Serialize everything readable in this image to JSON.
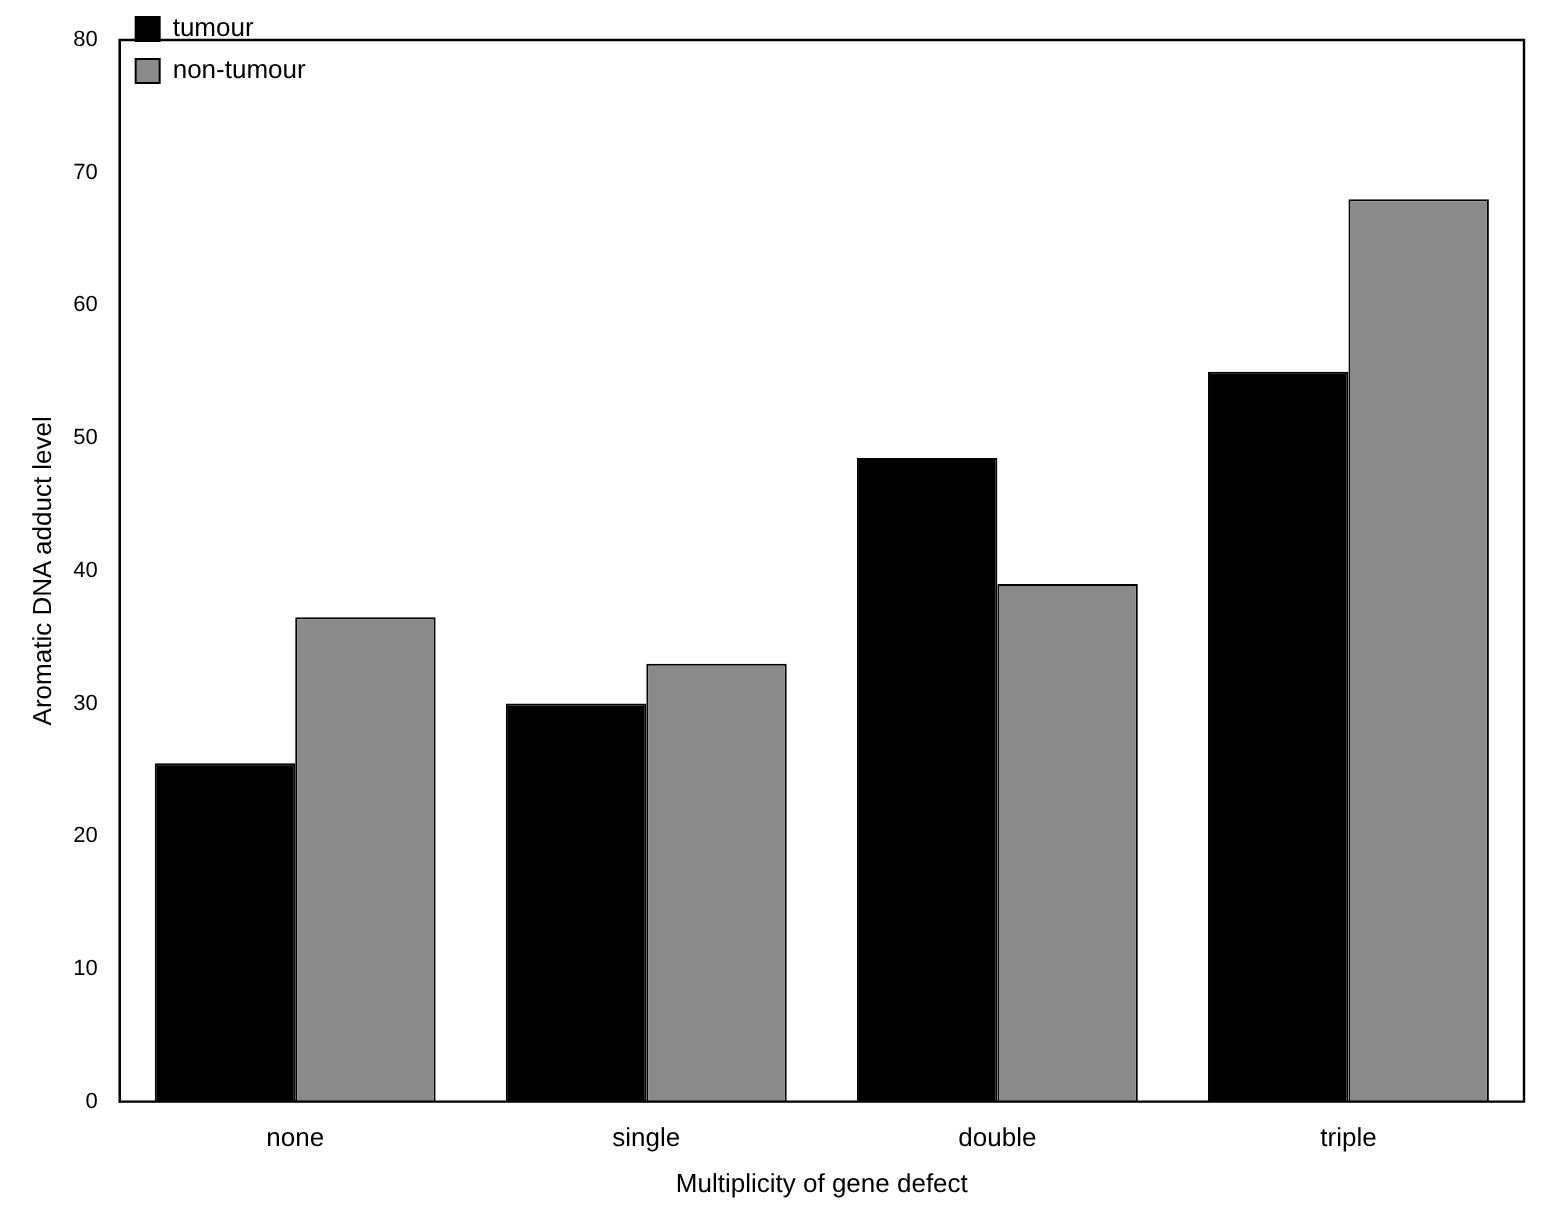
{
  "chart_data": {
    "type": "bar",
    "xlabel": "Multiplicity of gene defect",
    "ylabel": "Aromatic DNA adduct level",
    "categories": [
      "none",
      "single",
      "double",
      "triple"
    ],
    "series": [
      {
        "name": "tumour",
        "color": "#000000",
        "values": [
          25.5,
          30,
          48.5,
          55
        ]
      },
      {
        "name": "non-tumour",
        "color": "#8a8a8a",
        "values": [
          36.5,
          33,
          39,
          68
        ]
      }
    ],
    "ylim": [
      0,
      80
    ],
    "yticks": [
      0,
      10,
      20,
      30,
      40,
      50,
      60,
      70,
      80
    ],
    "grid": false,
    "legend": "top left"
  }
}
